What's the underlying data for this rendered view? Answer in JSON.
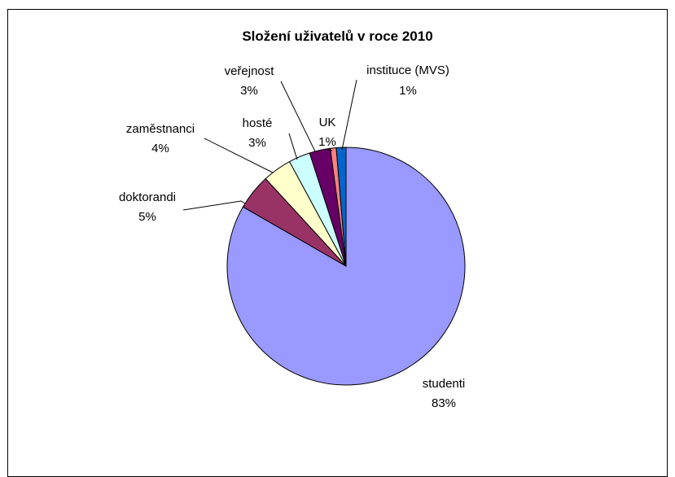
{
  "chart_data": {
    "type": "pie",
    "title": "Složení uživatelů v roce 2010",
    "legend": "none",
    "slices": [
      {
        "name": "studenti",
        "percent_label": "83%",
        "value": 82.4,
        "color": "#9999FF"
      },
      {
        "name": "doktorandi",
        "percent_label": "5%",
        "value": 4.8,
        "color": "#993366"
      },
      {
        "name": "zaměstnanci",
        "percent_label": "4%",
        "value": 3.9,
        "color": "#FFFFCC"
      },
      {
        "name": "hosté",
        "percent_label": "3%",
        "value": 2.9,
        "color": "#CCFFFF"
      },
      {
        "name": "veřejnost",
        "percent_label": "3%",
        "value": 2.8,
        "color": "#660066"
      },
      {
        "name": "UK",
        "percent_label": "1%",
        "value": 0.8,
        "color": "#FF8080"
      },
      {
        "name": "instituce (MVS)",
        "percent_label": "1%",
        "value": 1.3,
        "color": "#0066CC"
      }
    ]
  }
}
